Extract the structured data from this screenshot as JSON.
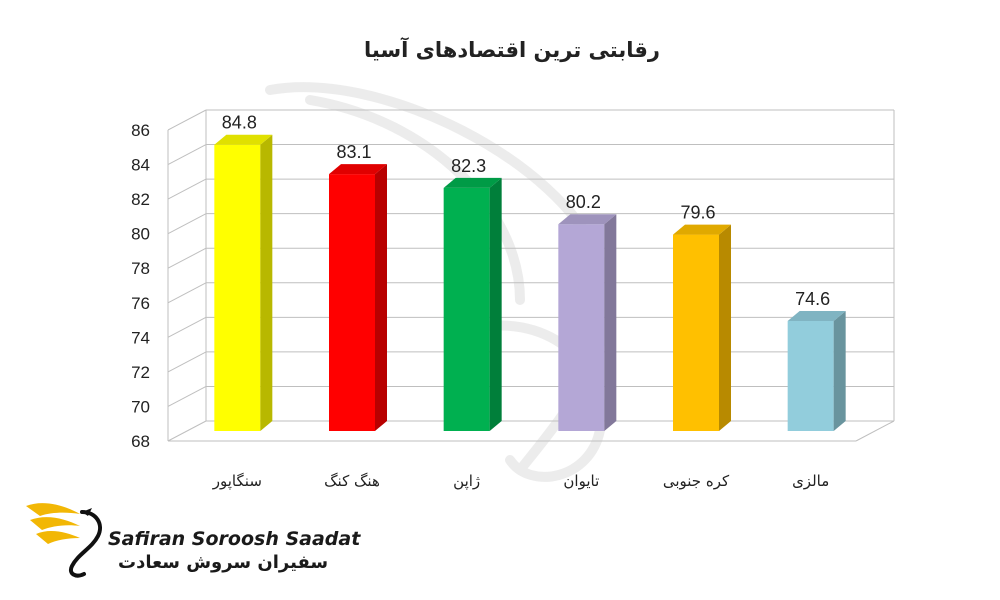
{
  "chart_data": {
    "type": "bar",
    "title": "رقابتی ترین اقتصادهای آسیا",
    "categories": [
      "سنگاپور",
      "هنگ کنگ",
      "ژاپن",
      "تایوان",
      "کره جنوبی",
      "مالزی"
    ],
    "values": [
      84.8,
      83.1,
      82.3,
      80.2,
      79.6,
      74.6
    ],
    "data_labels": [
      "84.8",
      "83.1",
      "82.3",
      "80.2",
      "79.6",
      "74.6"
    ],
    "colors": [
      "#ffff00",
      "#ff0000",
      "#00b050",
      "#b4a7d6",
      "#ffc000",
      "#92cddc"
    ],
    "ylim": [
      68,
      86
    ],
    "yticks": [
      "68",
      "70",
      "72",
      "74",
      "76",
      "78",
      "80",
      "82",
      "84",
      "86"
    ],
    "grid": true,
    "style": "3d-column"
  },
  "logo": {
    "text_en": "Safiran Soroosh Saadat",
    "text_fa": "سفیران سروش سعادت",
    "accent_color": "#f2b705"
  }
}
